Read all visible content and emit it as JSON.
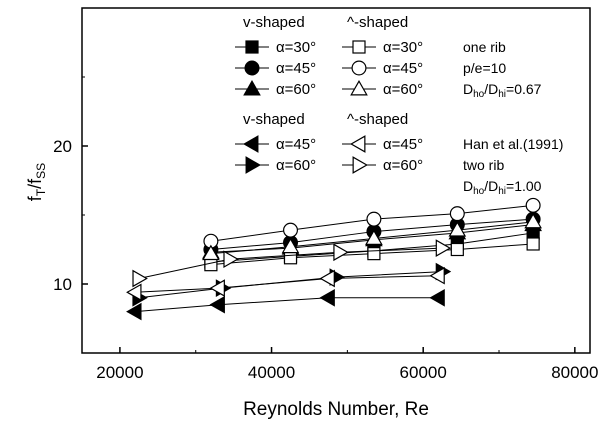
{
  "chart_data": {
    "type": "line",
    "xlabel": "Reynolds Number, Re",
    "ylabel_main": "f",
    "ylabel_sub1": "T",
    "ylabel_mid": "/f",
    "ylabel_sub2": "SS",
    "xlim": [
      15000,
      82000
    ],
    "ylim": [
      5,
      30
    ],
    "xticks": [
      20000,
      40000,
      60000,
      80000
    ],
    "yticks": [
      10,
      20
    ],
    "xtick_labels": [
      "20000",
      "40000",
      "60000",
      "80000"
    ],
    "ytick_labels": [
      "10",
      "20"
    ],
    "series": [
      {
        "name": "v-shaped α=30°",
        "marker": "square",
        "fill": "filled",
        "x": [
          32000,
          42500,
          53500,
          64500,
          74500
        ],
        "y": [
          11.6,
          12.0,
          12.4,
          12.9,
          13.7
        ]
      },
      {
        "name": "v-shaped α=45°",
        "marker": "circle",
        "fill": "filled",
        "x": [
          32000,
          42500,
          53500,
          64500,
          74500
        ],
        "y": [
          12.5,
          13.0,
          13.8,
          14.3,
          14.7
        ]
      },
      {
        "name": "v-shaped α=60°",
        "marker": "triangle-up",
        "fill": "filled",
        "x": [
          32000,
          42500,
          53500,
          64500,
          74500
        ],
        "y": [
          12.3,
          12.6,
          13.2,
          13.7,
          14.3
        ]
      },
      {
        "name": "^-shaped α=30°",
        "marker": "square",
        "fill": "open",
        "x": [
          32000,
          42500,
          53500,
          64500,
          74500
        ],
        "y": [
          11.4,
          11.9,
          12.2,
          12.5,
          12.9
        ]
      },
      {
        "name": "^-shaped α=45°",
        "marker": "circle",
        "fill": "open",
        "x": [
          32000,
          42500,
          53500,
          64500,
          74500
        ],
        "y": [
          13.1,
          13.9,
          14.7,
          15.1,
          15.7
        ]
      },
      {
        "name": "^-shaped α=60°",
        "marker": "triangle-up",
        "fill": "open",
        "x": [
          32000,
          42500,
          53500,
          64500,
          74500
        ],
        "y": [
          12.2,
          12.7,
          13.3,
          13.9,
          14.5
        ]
      },
      {
        "name": "Han v-shaped α=45°",
        "marker": "triangle-left",
        "fill": "filled",
        "x": [
          22000,
          33000,
          47500,
          62000
        ],
        "y": [
          8.0,
          8.5,
          9.0,
          9.0
        ]
      },
      {
        "name": "Han v-shaped α=60°",
        "marker": "triangle-right",
        "fill": "filled",
        "x": [
          22500,
          33500,
          48500,
          62500
        ],
        "y": [
          9.0,
          9.7,
          10.5,
          10.9
        ]
      },
      {
        "name": "Han ^-shaped α=45°",
        "marker": "triangle-left",
        "fill": "open",
        "x": [
          22000,
          33000,
          47500,
          62000
        ],
        "y": [
          9.4,
          9.7,
          10.4,
          10.6
        ]
      },
      {
        "name": "Han ^-shaped α=60°",
        "marker": "triangle-right",
        "fill": "open",
        "x": [
          22500,
          34500,
          49000,
          62500
        ],
        "y": [
          10.4,
          11.8,
          12.3,
          12.6
        ]
      }
    ],
    "legend_top": {
      "header_v": "v-shaped",
      "header_a": "^-shaped",
      "rows": [
        {
          "v_label": "α=30°",
          "a_label": "α=30°",
          "v_marker": "square",
          "a_marker": "square"
        },
        {
          "v_label": "α=45°",
          "a_label": "α=45°",
          "v_marker": "circle",
          "a_marker": "circle"
        },
        {
          "v_label": "α=60°",
          "a_label": "α=60°",
          "v_marker": "triangle-up",
          "a_marker": "triangle-up"
        }
      ],
      "notes": [
        "one rib",
        "p/e=10"
      ],
      "ratio_D1": "D",
      "ratio_sub1": "ho",
      "ratio_mid": "/D",
      "ratio_sub2": "hi",
      "ratio_val": "=0.67"
    },
    "legend_bottom": {
      "header_v": "v-shaped",
      "header_a": "^-shaped",
      "rows": [
        {
          "v_label": "α=45°",
          "a_label": "α=45°",
          "v_marker": "triangle-left",
          "a_marker": "triangle-left"
        },
        {
          "v_label": "α=60°",
          "a_label": "α=60°",
          "v_marker": "triangle-right",
          "a_marker": "triangle-right"
        }
      ],
      "notes": [
        "Han et al.(1991)",
        "two rib"
      ],
      "ratio_D1": "D",
      "ratio_sub1": "ho",
      "ratio_mid": "/D",
      "ratio_sub2": "hi",
      "ratio_val": "=1.00"
    }
  }
}
